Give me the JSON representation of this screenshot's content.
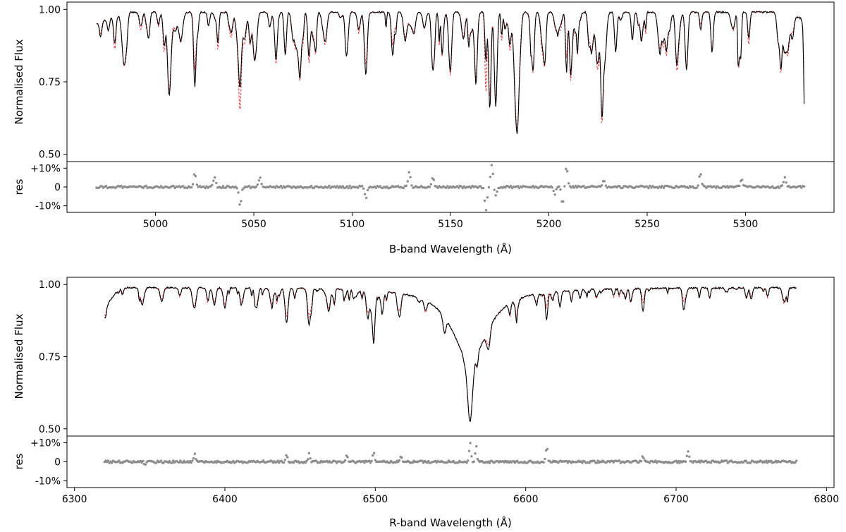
{
  "chart_data": [
    {
      "type": "line",
      "panel": "B-band",
      "xlabel": "B-band Wavelength (Å)",
      "ylabel_flux": "Normalised Flux",
      "ylabel_res": "res",
      "xlim": [
        4955,
        5345
      ],
      "ylim_flux": [
        0.475,
        1.025
      ],
      "ylim_res": [
        -0.135,
        0.135
      ],
      "xticks": [
        5000,
        5050,
        5100,
        5150,
        5200,
        5250,
        5300
      ],
      "xtick_labels": [
        "5000",
        "5050",
        "5100",
        "5150",
        "5200",
        "5250",
        "5300"
      ],
      "yticks_flux": [
        1.0,
        0.75,
        0.5
      ],
      "ytick_labels_flux": [
        "1.00",
        "0.75",
        "0.50"
      ],
      "yticks_res": [
        0.1,
        0.0,
        -0.1
      ],
      "ytick_labels_res": [
        "+10%",
        "0",
        "-10%"
      ],
      "series": [
        {
          "role": "observed",
          "color": "#000000",
          "style": "solid"
        },
        {
          "role": "model",
          "color": "#e8383a",
          "style": "dashed"
        },
        {
          "role": "residual",
          "color": "#8c8c8c",
          "style": "points"
        }
      ],
      "x_range": [
        4970,
        5330
      ],
      "continuum": [
        [
          4970,
          0.95
        ],
        [
          4985,
          0.99
        ],
        [
          5050,
          0.99
        ],
        [
          5150,
          0.99
        ],
        [
          5250,
          0.99
        ],
        [
          5300,
          0.99
        ],
        [
          5315,
          0.99
        ],
        [
          5328,
          0.97
        ],
        [
          5330,
          0.94
        ]
      ],
      "absorption_lines": [
        [
          4984,
          0.82,
          1.0,
          0.82
        ],
        [
          5007,
          0.81,
          0.8,
          0.83
        ],
        [
          5020,
          0.74,
          0.6,
          0.8
        ],
        [
          5043,
          0.76,
          0.7,
          0.68
        ],
        [
          5066,
          0.85,
          0.6,
          0.86
        ],
        [
          5078,
          0.87,
          0.6,
          0.85
        ],
        [
          5097,
          0.85,
          0.6,
          0.85
        ],
        [
          5107,
          0.81,
          0.7,
          0.84
        ],
        [
          5141,
          0.8,
          0.7,
          0.8
        ],
        [
          5150,
          0.85,
          0.7,
          0.82
        ],
        [
          5163,
          0.86,
          0.6,
          0.86
        ],
        [
          5168,
          0.83,
          0.5,
          0.72
        ],
        [
          5170,
          0.66,
          0.6,
          0.7
        ],
        [
          5173,
          0.67,
          0.7,
          0.67
        ],
        [
          5184,
          0.61,
          0.8,
          0.61
        ],
        [
          5192,
          0.83,
          0.6,
          0.82
        ],
        [
          5198,
          0.85,
          0.6,
          0.85
        ],
        [
          5209,
          0.79,
          0.5,
          0.84
        ],
        [
          5227,
          0.66,
          0.6,
          0.64
        ],
        [
          5234,
          0.86,
          0.6,
          0.86
        ],
        [
          5265,
          0.86,
          0.7,
          0.85
        ],
        [
          5270,
          0.8,
          0.7,
          0.8
        ],
        [
          5283,
          0.86,
          0.6,
          0.86
        ],
        [
          5297,
          0.86,
          0.6,
          0.86
        ],
        [
          5318,
          0.81,
          0.6,
          0.8
        ],
        [
          5330,
          0.68,
          0.4,
          0.7
        ]
      ],
      "residual_spikes": [
        [
          5020,
          0.07
        ],
        [
          5030,
          0.05
        ],
        [
          5043,
          -0.1
        ],
        [
          5053,
          0.05
        ],
        [
          5107,
          -0.06
        ],
        [
          5129,
          0.08
        ],
        [
          5141,
          0.05
        ],
        [
          5168,
          -0.12
        ],
        [
          5171,
          0.12
        ],
        [
          5173,
          -0.05
        ],
        [
          5203,
          -0.04
        ],
        [
          5207,
          -0.09
        ],
        [
          5209,
          0.11
        ],
        [
          5228,
          0.04
        ],
        [
          5277,
          0.07
        ],
        [
          5298,
          0.04
        ],
        [
          5320,
          0.05
        ]
      ]
    },
    {
      "type": "line",
      "panel": "R-band",
      "xlabel": "R-band Wavelength (Å)",
      "ylabel_flux": "Normalised Flux",
      "ylabel_res": "res",
      "xlim": [
        6295,
        6805
      ],
      "ylim_flux": [
        0.475,
        1.025
      ],
      "ylim_res": [
        -0.135,
        0.135
      ],
      "xticks": [
        6300,
        6400,
        6500,
        6600,
        6700,
        6800
      ],
      "xtick_labels": [
        "6300",
        "6400",
        "6500",
        "6600",
        "6700",
        "6800"
      ],
      "yticks_flux": [
        1.0,
        0.75,
        0.5
      ],
      "ytick_labels_flux": [
        "1.00",
        "0.75",
        "0.50"
      ],
      "yticks_res": [
        0.1,
        0.0,
        -0.1
      ],
      "ytick_labels_res": [
        "+10%",
        "0",
        "-10%"
      ],
      "series": [
        {
          "role": "observed",
          "color": "#000000",
          "style": "solid"
        },
        {
          "role": "model",
          "color": "#e8383a",
          "style": "dashed"
        },
        {
          "role": "residual",
          "color": "#8c8c8c",
          "style": "points"
        }
      ],
      "x_range": [
        6320,
        6780
      ],
      "continuum": [
        [
          6320,
          0.92
        ],
        [
          6330,
          0.99
        ],
        [
          6780,
          0.99
        ]
      ],
      "halpha": {
        "center": 6563,
        "depth": 0.53,
        "wing_width": 14,
        "core_width": 1.6
      },
      "absorption_lines": [
        [
          6345,
          0.94,
          1.2,
          0.95
        ],
        [
          6358,
          0.95,
          1.0,
          0.96
        ],
        [
          6380,
          0.94,
          1.0,
          0.95
        ],
        [
          6393,
          0.94,
          1.0,
          0.95
        ],
        [
          6400,
          0.93,
          1.0,
          0.94
        ],
        [
          6411,
          0.94,
          1.0,
          0.95
        ],
        [
          6421,
          0.93,
          1.0,
          0.94
        ],
        [
          6431,
          0.94,
          1.0,
          0.95
        ],
        [
          6441,
          0.88,
          1.0,
          0.9
        ],
        [
          6456,
          0.87,
          1.0,
          0.9
        ],
        [
          6469,
          0.92,
          1.0,
          0.93
        ],
        [
          6495,
          0.9,
          1.0,
          0.92
        ],
        [
          6499,
          0.86,
          1.0,
          0.87
        ],
        [
          6516,
          0.92,
          1.0,
          0.94
        ],
        [
          6546,
          0.94,
          1.0,
          0.94
        ],
        [
          6575,
          0.93,
          1.2,
          0.95
        ],
        [
          6594,
          0.95,
          1.0,
          0.96
        ],
        [
          6614,
          0.92,
          0.8,
          0.97
        ],
        [
          6678,
          0.92,
          0.8,
          0.95
        ],
        [
          6705,
          0.93,
          0.8,
          0.96
        ],
        [
          6750,
          0.96,
          0.8,
          0.97
        ]
      ],
      "residual_spikes": [
        [
          6347,
          -0.02
        ],
        [
          6380,
          0.04
        ],
        [
          6441,
          0.03
        ],
        [
          6456,
          0.04
        ],
        [
          6481,
          0.04
        ],
        [
          6499,
          0.05
        ],
        [
          6517,
          0.03
        ],
        [
          6563,
          0.1
        ],
        [
          6567,
          0.08
        ],
        [
          6614,
          0.08
        ],
        [
          6678,
          0.03
        ],
        [
          6708,
          0.06
        ]
      ]
    }
  ]
}
